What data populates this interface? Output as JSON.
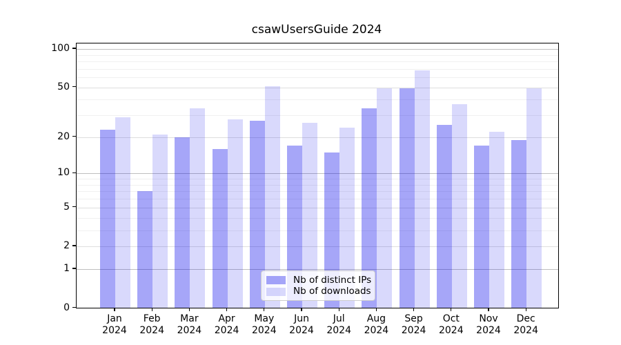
{
  "chart_data": {
    "type": "bar",
    "title": "csawUsersGuide 2024",
    "categories": [
      "Jan",
      "Feb",
      "Mar",
      "Apr",
      "May",
      "Jun",
      "Jul",
      "Aug",
      "Sep",
      "Oct",
      "Nov",
      "Dec"
    ],
    "category_year": "2024",
    "series": [
      {
        "name": "Nb of distinct IPs",
        "color": "rgba(0,0,235,0.35)",
        "values": [
          23,
          7,
          20,
          16,
          27,
          17,
          15,
          34,
          49,
          25,
          17,
          19
        ]
      },
      {
        "name": "Nb of downloads",
        "color": "rgba(0,0,235,0.15)",
        "values": [
          29,
          21,
          34,
          28,
          51,
          26,
          24,
          49,
          68,
          37,
          22,
          49
        ]
      }
    ],
    "xlabel": "",
    "ylabel": "",
    "y_axis": {
      "scale": "log1p",
      "tick_values": [
        100,
        50,
        20,
        10,
        5,
        2,
        1,
        0
      ],
      "tick_labels": [
        "100",
        "50",
        "20",
        "10",
        "5",
        "2",
        "1",
        "0"
      ],
      "decade_gridlines": [
        1,
        10,
        100
      ],
      "mid_gridlines": [
        2,
        5,
        20,
        50
      ],
      "minor_gridlines": [
        3,
        4,
        6,
        7,
        8,
        9,
        30,
        40,
        60,
        70,
        80,
        90
      ],
      "ylim_top_approx": 110
    },
    "grid": true,
    "legend_position": "lower center"
  }
}
